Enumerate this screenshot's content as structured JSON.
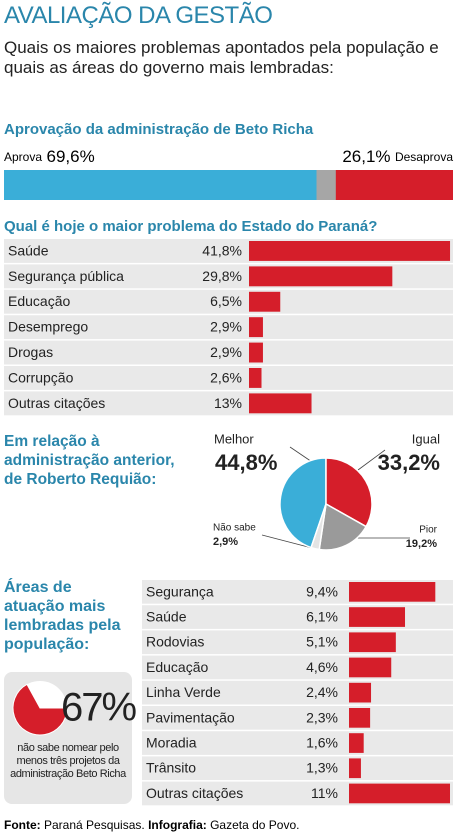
{
  "title": "AVALIAÇÃO DA GESTÃO",
  "subtitle": "Quais os maiores problemas apontados pela população e quais as áreas do governo mais lembradas:",
  "chart_data": [
    {
      "type": "stacked_bar",
      "title": "Aprovação da administração de Beto Richa",
      "series": [
        {
          "name": "Aprova",
          "color": "#3aaed8",
          "values": [
            69.6
          ],
          "value_labels": [
            "69,6%"
          ]
        },
        {
          "name": "Desaprova",
          "color": "#d51e2a",
          "values": [
            26.1
          ],
          "value_labels": [
            "26,1%"
          ]
        }
      ],
      "xlim": [
        0,
        100
      ]
    },
    {
      "type": "hbar",
      "title": "Qual é hoje o maior problema do Estado do Paraná?",
      "categories": [
        "Saúde",
        "Segurança pública",
        "Educação",
        "Desemprego",
        "Drogas",
        "Corrupção",
        "Outras citações"
      ],
      "values": [
        41.8,
        29.8,
        6.5,
        2.9,
        2.9,
        2.6,
        13
      ],
      "value_labels": [
        "41,8%",
        "29,8%",
        "6,5%",
        "2,9%",
        "2,9%",
        "2,6%",
        "13%"
      ],
      "color": "#d51e2a",
      "xlim": [
        0,
        42
      ]
    },
    {
      "type": "pie",
      "title": "Em relação à administração anterior, de Roberto Requião:",
      "categories": [
        "Melhor",
        "Igual",
        "Pior",
        "Não sabe"
      ],
      "values": [
        44.8,
        33.2,
        19.2,
        2.9
      ],
      "value_labels": [
        "44,8%",
        "33,2%",
        "19,2%",
        "2,9%"
      ],
      "colors": [
        "#3aaed8",
        "#d51e2a",
        "#9a9a9a",
        "#e4e4e4"
      ]
    },
    {
      "type": "hbar",
      "title": "Áreas de atuação mais lembradas pela população:",
      "categories": [
        "Segurança",
        "Saúde",
        "Rodovias",
        "Educação",
        "Linha Verde",
        "Pavimentação",
        "Moradia",
        "Trânsito",
        "Outras citações"
      ],
      "values": [
        9.4,
        6.1,
        5.1,
        4.6,
        2.4,
        2.3,
        1.6,
        1.3,
        11
      ],
      "value_labels": [
        "9,4%",
        "6,1%",
        "5,1%",
        "4,6%",
        "2,4%",
        "2,3%",
        "1,6%",
        "1,3%",
        "11%"
      ],
      "color": "#d51e2a",
      "xlim": [
        0,
        11
      ]
    },
    {
      "type": "pie",
      "values": [
        67
      ],
      "value_labels": [
        "67%"
      ],
      "colors": [
        "#d51e2a"
      ],
      "caption": "não sabe nomear pelo menos três projetos da administração Beto Richa"
    }
  ],
  "footer": {
    "source_label": "Fonte:",
    "source": "Paraná Pesquisas.",
    "credit_label": "Infografia:",
    "credit": "Gazeta do Povo."
  }
}
